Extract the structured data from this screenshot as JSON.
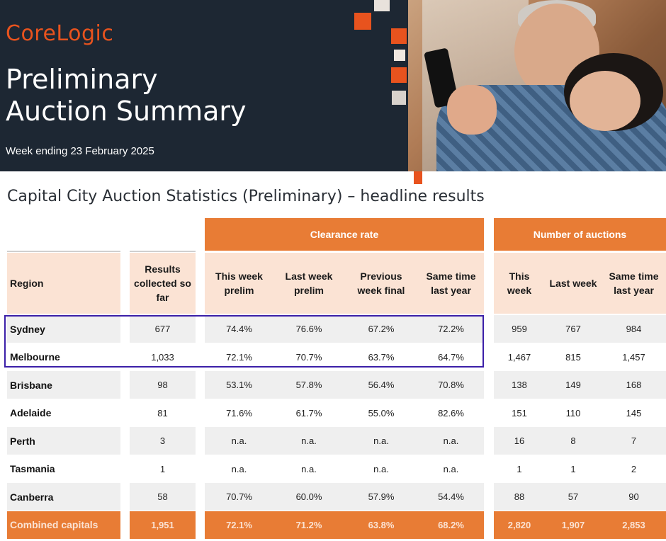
{
  "header": {
    "logo": "CoreLogic",
    "title_line1": "Preliminary",
    "title_line2": "Auction Summary",
    "week": "Week ending 23 February 2025"
  },
  "subtitle": "Capital City Auction Statistics (Preliminary) – headline results",
  "colors": {
    "accent": "#e87c35",
    "brand_orange": "#e8531e",
    "banner": "#1d2733",
    "highlight_box": "#3b1fa8"
  },
  "table": {
    "group_headers": {
      "clearance": "Clearance rate",
      "auctions": "Number of auctions"
    },
    "columns": {
      "region": "Region",
      "results_l1": "Results",
      "results_l2": "collected so",
      "results_l3": "far",
      "tw_l1": "This week",
      "tw_l2": "prelim",
      "lw_l1": "Last week",
      "lw_l2": "prelim",
      "pw_l1": "Previous",
      "pw_l2": "week final",
      "st_l1": "Same time",
      "st_l2": "last year",
      "at_l1": "This",
      "at_l2": "week",
      "al": "Last week",
      "as_l1": "Same time",
      "as_l2": "last year"
    },
    "rows": [
      {
        "region": "Sydney",
        "results": "677",
        "tw": "74.4%",
        "lw": "76.6%",
        "pw": "67.2%",
        "st": "72.2%",
        "at": "959",
        "al": "767",
        "as": "984"
      },
      {
        "region": "Melbourne",
        "results": "1,033",
        "tw": "72.1%",
        "lw": "70.7%",
        "pw": "63.7%",
        "st": "64.7%",
        "at": "1,467",
        "al": "815",
        "as": "1,457"
      },
      {
        "region": "Brisbane",
        "results": "98",
        "tw": "53.1%",
        "lw": "57.8%",
        "pw": "56.4%",
        "st": "70.8%",
        "at": "138",
        "al": "149",
        "as": "168"
      },
      {
        "region": "Adelaide",
        "results": "81",
        "tw": "71.6%",
        "lw": "61.7%",
        "pw": "55.0%",
        "st": "82.6%",
        "at": "151",
        "al": "110",
        "as": "145"
      },
      {
        "region": "Perth",
        "results": "3",
        "tw": "n.a.",
        "lw": "n.a.",
        "pw": "n.a.",
        "st": "n.a.",
        "at": "16",
        "al": "8",
        "as": "7"
      },
      {
        "region": "Tasmania",
        "results": "1",
        "tw": "n.a.",
        "lw": "n.a.",
        "pw": "n.a.",
        "st": "n.a.",
        "at": "1",
        "al": "1",
        "as": "2"
      },
      {
        "region": "Canberra",
        "results": "58",
        "tw": "70.7%",
        "lw": "60.0%",
        "pw": "57.9%",
        "st": "54.4%",
        "at": "88",
        "al": "57",
        "as": "90"
      }
    ],
    "total": {
      "region": "Combined capitals",
      "results": "1,951",
      "tw": "72.1%",
      "lw": "71.2%",
      "pw": "63.8%",
      "st": "68.2%",
      "at": "2,820",
      "al": "1,907",
      "as": "2,853"
    }
  }
}
